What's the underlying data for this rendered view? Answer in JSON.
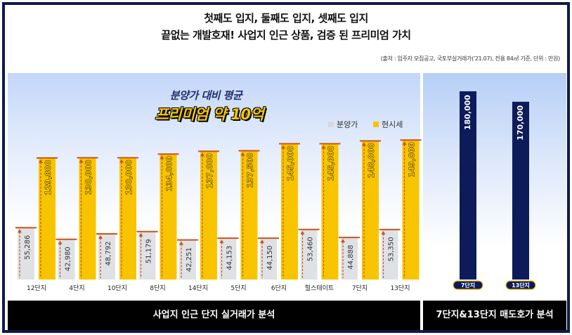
{
  "header": {
    "line1": "첫째도 입지, 둘째도 입지, 셋째도 입지",
    "line2": "끝없는 개발호재! 사업지 인근 상품, 검증 된 프리미엄 가치",
    "source": "(출처 : 입주자 모집공고, 국토부실거래가('21.07), 전용 84㎡ 기준, 단위 : 만원)"
  },
  "captions": {
    "avg": "분양가 대비 평균",
    "premium": "프리미엄 약 10억"
  },
  "legend": {
    "sale": "분양가",
    "current": "현시세"
  },
  "footer": {
    "left": "사업지 인근 단지 실거래가 분석",
    "right": "7단지&13단지 매도호가 분석"
  },
  "colors": {
    "sale_bar": "#dfe1e5",
    "current_bar": "#f8c400",
    "navy_bar": "#0d1b5a",
    "arrow": "#c8541c",
    "frame": "#0d1b4a"
  },
  "chart_data": [
    {
      "type": "bar",
      "title": "사업지 인근 단지 실거래가 분석",
      "categories": [
        "12단지",
        "4단지",
        "10단지",
        "8단지",
        "14단지",
        "5단지",
        "6단지",
        "힐스테이트",
        "7단지",
        "13단지"
      ],
      "series": [
        {
          "name": "분양가",
          "values": [
            55286,
            42980,
            48792,
            51179,
            42251,
            44153,
            44150,
            53460,
            44888,
            53350
          ],
          "labels": [
            "55,286",
            "42,980",
            "48,792",
            "51,179",
            "42,251",
            "44,153",
            "44,150",
            "53,460",
            "44,888",
            "53,350"
          ]
        },
        {
          "name": "현시세",
          "values": [
            129800,
            130000,
            130000,
            134000,
            137000,
            137500,
            145000,
            145000,
            148000,
            149000
          ],
          "labels": [
            "129,800",
            "130,000",
            "130,000",
            "134,000",
            "137,000",
            "137,500",
            "145,000",
            "145,000",
            "148,000",
            "149,000"
          ]
        }
      ],
      "xlabel": "",
      "ylabel": "",
      "legend": "top-right",
      "grid": false
    },
    {
      "type": "bar",
      "title": "7단지&13단지 매도호가 분석",
      "categories": [
        "7단지",
        "13단지"
      ],
      "values": [
        180000,
        170000
      ],
      "labels": [
        "180,000",
        "170,000"
      ],
      "xlabel": "",
      "ylabel": "",
      "grid": false
    }
  ]
}
